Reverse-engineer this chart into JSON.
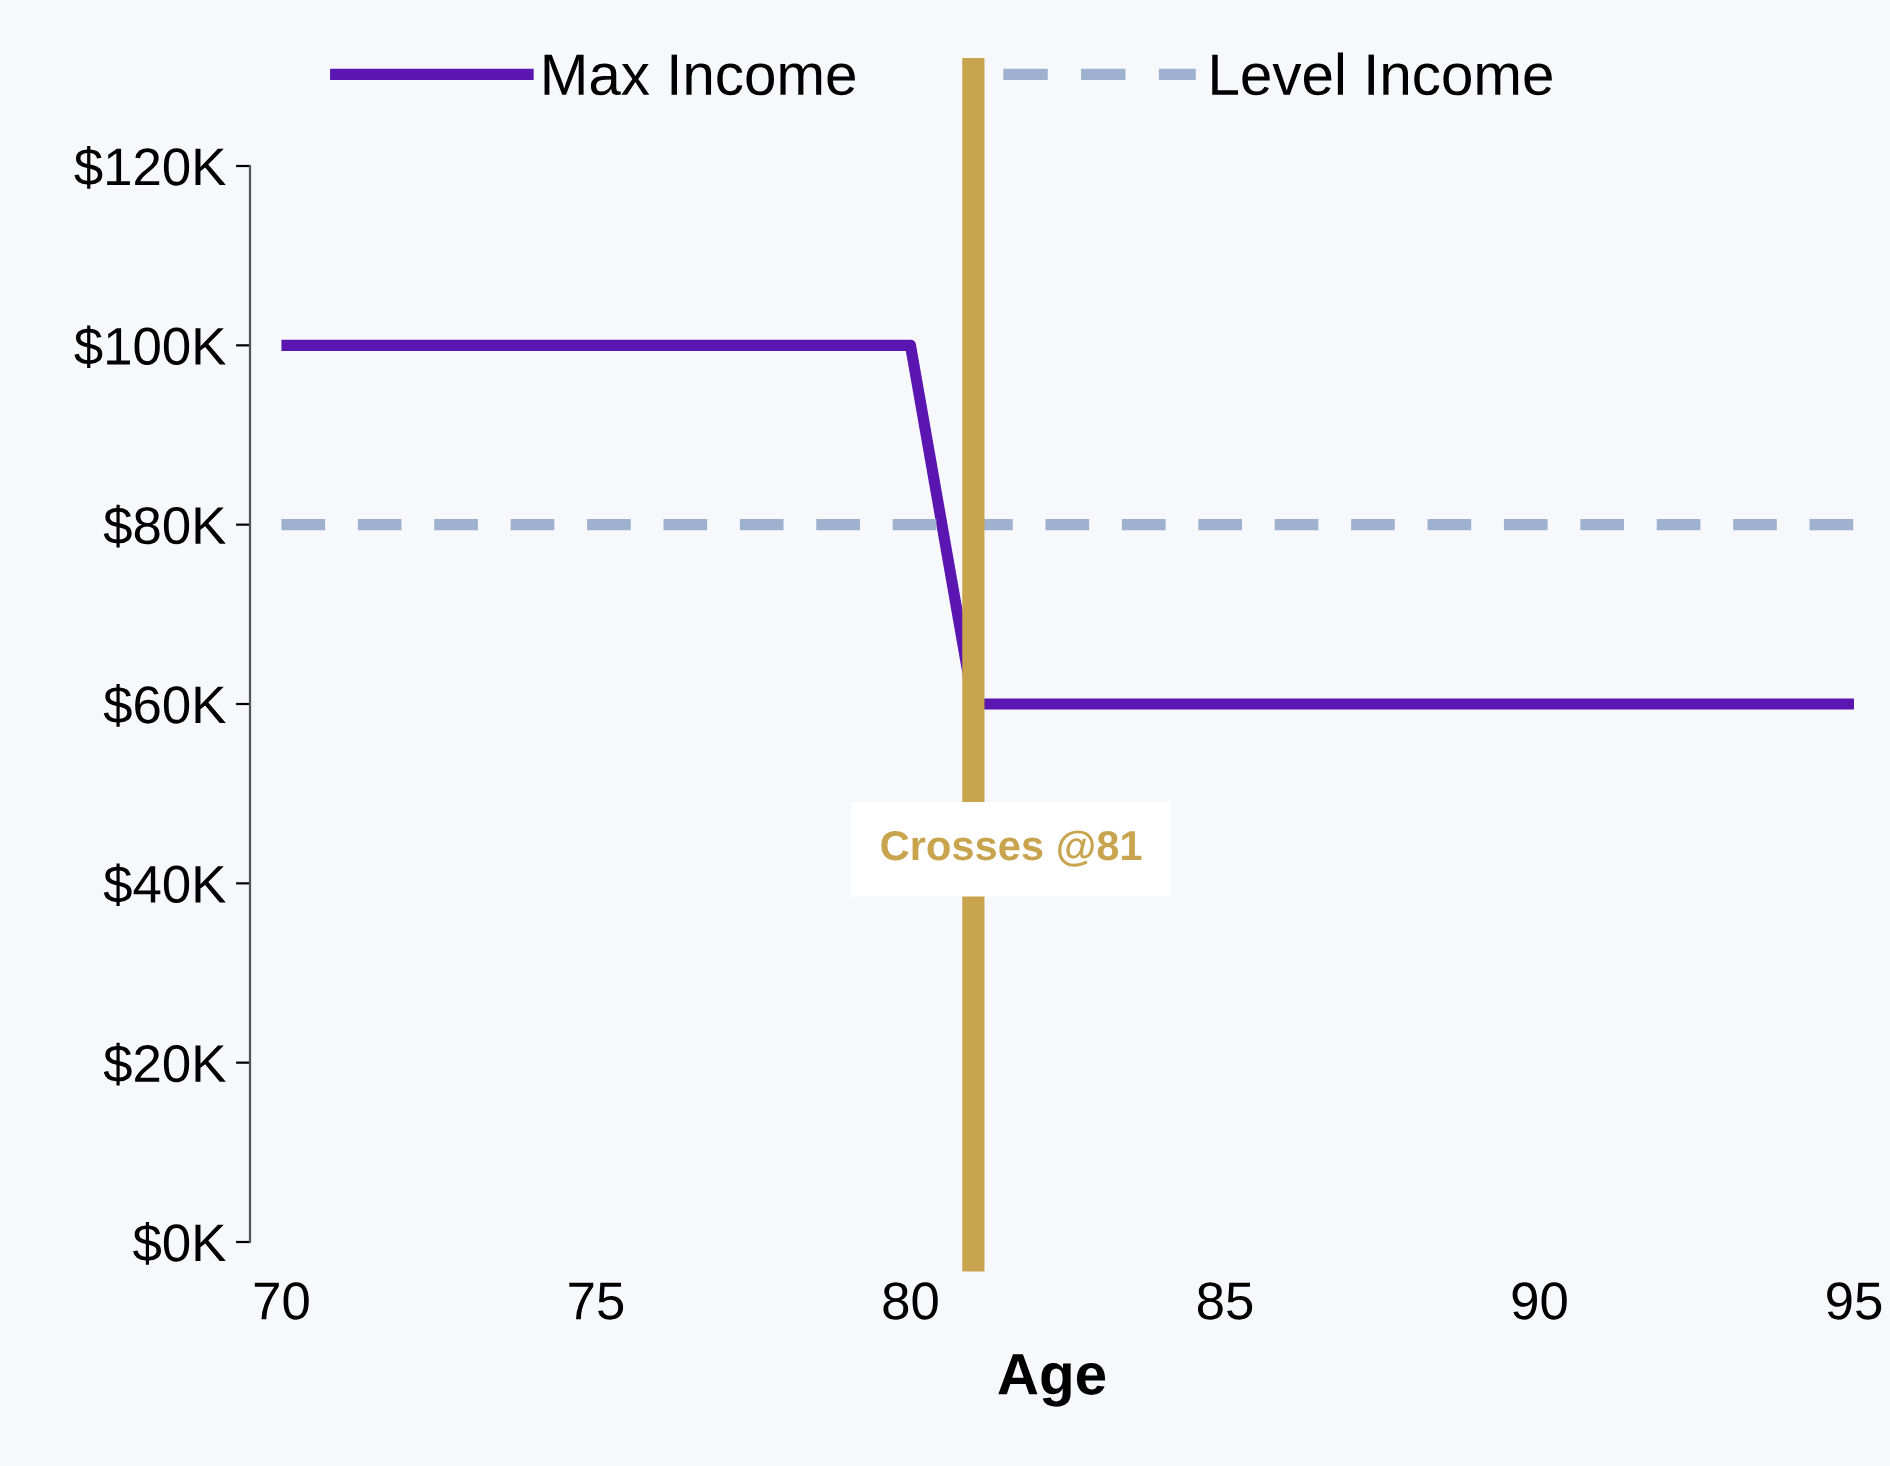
{
  "chart_data": {
    "type": "line",
    "xlabel": "Age",
    "x": [
      70,
      80,
      81,
      95
    ],
    "series": [
      {
        "name": "Max Income",
        "color": "#5b16b2",
        "values": [
          100000,
          100000,
          60000,
          60000
        ],
        "line_style": "solid"
      },
      {
        "name": "Level Income",
        "color": "#9eb2cf",
        "x": [
          70,
          95
        ],
        "values": [
          80000,
          80000
        ],
        "line_style": "dashed"
      }
    ],
    "xlim": [
      69.5,
      95
    ],
    "xticks": [
      70,
      75,
      80,
      85,
      90,
      95
    ],
    "ylim": [
      0,
      120000
    ],
    "yticks": [
      {
        "value": 0,
        "label": "$0K"
      },
      {
        "value": 20000,
        "label": "$20K"
      },
      {
        "value": 40000,
        "label": "$40K"
      },
      {
        "value": 60000,
        "label": "$60K"
      },
      {
        "value": 80000,
        "label": "$80K"
      },
      {
        "value": 100000,
        "label": "$100K"
      },
      {
        "value": 120000,
        "label": "$120K"
      }
    ],
    "ref_lines": [
      {
        "axis": "x",
        "value": 81,
        "label": "Crosses @81",
        "color": "#c9a44e"
      }
    ],
    "grid": false,
    "legend": "top",
    "marker": "none"
  }
}
